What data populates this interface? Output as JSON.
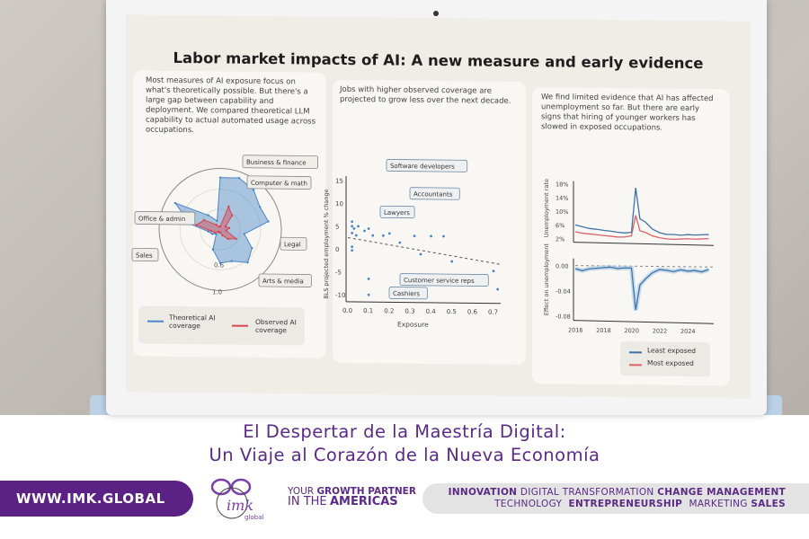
{
  "screen": {
    "title": "Labor market impacts of AI: A new measure and early evidence",
    "card1": {
      "text": "Most measures of AI exposure focus on what's theoretically possible. But there's a large gap between capability and deployment. We compared theoretical LLM capability to actual automated usage across occupations.",
      "labels": [
        "Business & finance",
        "Computer & math",
        "Legal",
        "Arts & media",
        "Office & admin",
        "Sales"
      ],
      "ring_labels": [
        "0.6",
        "1.0"
      ],
      "legend": [
        "Theoretical AI coverage",
        "Observed AI coverage"
      ],
      "colors": {
        "theoretical": "#4a86c8",
        "observed": "#d9464f"
      },
      "theoretical": [
        0.85,
        0.9,
        0.85,
        0.75,
        0.8,
        0.4,
        0.6,
        0.7,
        0.55,
        0.55,
        0.35,
        0.1,
        0.15,
        0.2,
        0.5,
        0.85,
        0.3,
        0.15
      ],
      "observed": [
        0.05,
        0.4,
        0.3,
        0.1,
        0.15,
        0.1,
        0.3,
        0.2,
        0.1,
        0.05,
        0.05,
        0.05,
        0.1,
        0.15,
        0.4,
        0.3,
        0.1,
        0.05
      ]
    },
    "card2": {
      "text": "Jobs with higher observed coverage are projected to grow less over the next decade.",
      "ylabel": "BLS projected employment % change",
      "xlabel": "Exposure",
      "yticks": [
        "15",
        "10",
        "5",
        "0",
        "-5",
        "-10"
      ],
      "xticks": [
        "0.0",
        "0.1",
        "0.2",
        "0.3",
        "0.4",
        "0.5",
        "0.6",
        "0.7"
      ],
      "callouts": [
        "Software developers",
        "Accountants",
        "Lawyers",
        "Customer service reps",
        "Cashiers"
      ],
      "points": [
        [
          0.02,
          6
        ],
        [
          0.02,
          5
        ],
        [
          0.03,
          4.5
        ],
        [
          0.05,
          5
        ],
        [
          0.02,
          3.5
        ],
        [
          0.04,
          3
        ],
        [
          0.08,
          4
        ],
        [
          0.1,
          4.5
        ],
        [
          0.12,
          3
        ],
        [
          0.17,
          3
        ],
        [
          0.2,
          3.5
        ],
        [
          0.25,
          1.5
        ],
        [
          0.32,
          3
        ],
        [
          0.4,
          3
        ],
        [
          0.46,
          3
        ],
        [
          0.02,
          0.5
        ],
        [
          0.02,
          -0.3
        ],
        [
          0.35,
          -1
        ],
        [
          0.5,
          -2.5
        ],
        [
          0.7,
          -4.5
        ],
        [
          0.1,
          -6.5
        ],
        [
          0.72,
          -8.5
        ],
        [
          0.1,
          -10
        ]
      ],
      "trend": [
        [
          0.0,
          2.5
        ],
        [
          0.73,
          -3
        ]
      ]
    },
    "card3": {
      "text": "We find limited evidence that AI has affected unemployment so far. But there are early signs that hiring of younger workers has slowed in exposed occupations.",
      "ylabel_top": "Unemployment rate",
      "ylabel_bottom": "Effect on unemployment",
      "yticks_top": [
        "18%",
        "14%",
        "10%",
        "6%",
        "2%"
      ],
      "yticks_bottom": [
        "0.00",
        "-0.04",
        "-0.08"
      ],
      "xticks": [
        "2016",
        "2018",
        "2020",
        "2022",
        "2024"
      ],
      "legend": [
        "Least exposed",
        "Most exposed"
      ],
      "colors": {
        "least": "#3f73a8",
        "most": "#d9646a"
      },
      "years": [
        2016,
        2016.5,
        2017,
        2017.5,
        2018,
        2018.5,
        2019,
        2019.5,
        2020,
        2020.3,
        2020.6,
        2021,
        2021.5,
        2022,
        2022.5,
        2023,
        2023.5,
        2024,
        2024.5,
        2025,
        2025.5
      ],
      "least": [
        6,
        5.5,
        5,
        4.8,
        4.5,
        4.3,
        4,
        3.8,
        4,
        17,
        8,
        7,
        5,
        4,
        3.5,
        3.5,
        3.3,
        3.5,
        3.4,
        3.5,
        3.6
      ],
      "most": [
        4,
        3.6,
        3.4,
        3.2,
        3,
        2.8,
        2.6,
        2.6,
        3,
        9,
        4.5,
        4,
        3,
        2.5,
        2.2,
        2.1,
        2.2,
        2.3,
        2.2,
        2.3,
        2.4
      ],
      "effect": [
        -0.005,
        -0.008,
        -0.005,
        -0.004,
        -0.003,
        -0.002,
        -0.004,
        -0.003,
        -0.003,
        -0.07,
        -0.03,
        -0.02,
        -0.01,
        -0.005,
        -0.006,
        -0.008,
        -0.005,
        -0.007,
        -0.006,
        -0.008,
        -0.004
      ]
    }
  },
  "banner": {
    "title_line1": "El Despertar de la Maestría Digital:",
    "title_line2": "Un Viaje al Corazón de la Nueva Economía",
    "url": "WWW.IMK.GLOBAL",
    "logo_text": "imk global",
    "tagline": [
      "YOUR",
      "GROWTH PARTNER",
      "IN THE",
      "AMERICAS"
    ],
    "topics_line1": [
      "INNOVATION",
      "DIGITAL TRANSFORMATION",
      "CHANGE MANAGEMENT"
    ],
    "topics_line2": [
      "TECHNOLOGY",
      "ENTREPRENEURSHIP",
      "MARKETING",
      "SALES"
    ],
    "brand_color": "#5b2184"
  }
}
